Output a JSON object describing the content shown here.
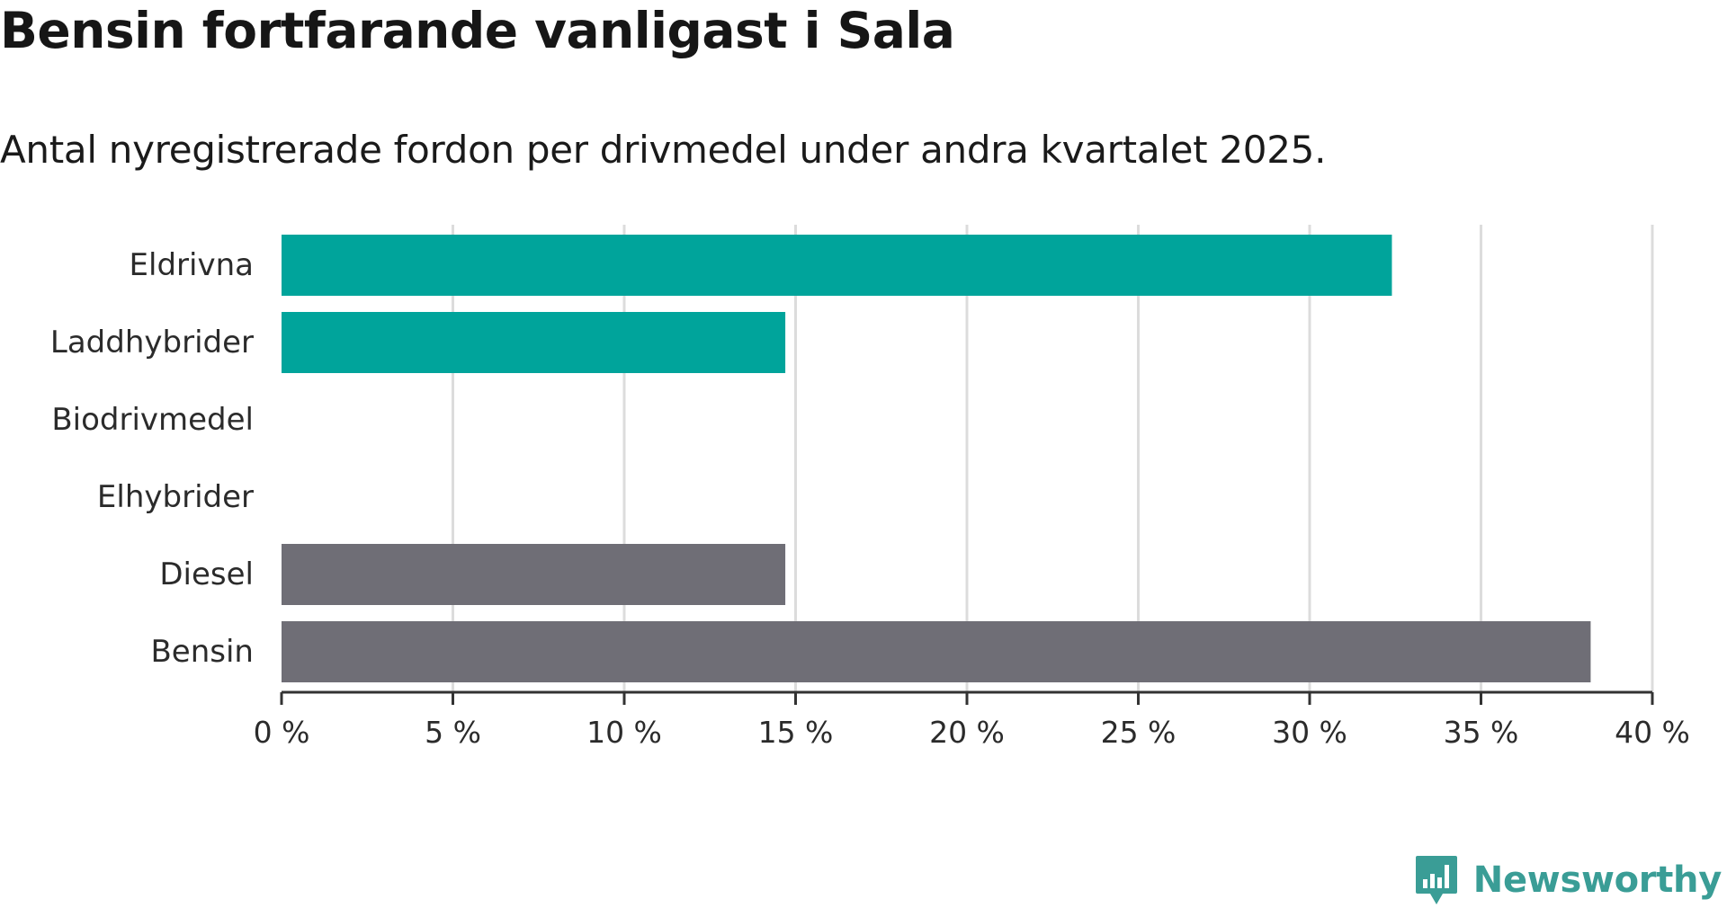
{
  "chart_data": {
    "type": "bar",
    "orientation": "horizontal",
    "title": "Bensin fortfarande vanligast i Sala",
    "subtitle": "Antal nyregistrerade fordon per drivmedel under andra kvartalet 2025.",
    "categories": [
      "Eldrivna",
      "Laddhybrider",
      "Biodrivmedel",
      "Elhybrider",
      "Diesel",
      "Bensin"
    ],
    "values": [
      32.4,
      14.7,
      0,
      0,
      14.7,
      38.2
    ],
    "bar_colors": [
      "#00a49b",
      "#00a49b",
      "#00a49b",
      "#00a49b",
      "#6f6e76",
      "#6f6e76"
    ],
    "xlim": [
      0,
      40
    ],
    "x_ticks": [
      0,
      5,
      10,
      15,
      20,
      25,
      30,
      35,
      40
    ],
    "x_tick_labels": [
      "0 %",
      "5 %",
      "10 %",
      "15 %",
      "20 %",
      "25 %",
      "30 %",
      "35 %",
      "40 %"
    ],
    "grid": true,
    "xlabel": "",
    "ylabel": ""
  },
  "brand": {
    "name": "Newsworthy",
    "icon": "bar-chart-badge-icon",
    "color": "#3a9d96"
  }
}
